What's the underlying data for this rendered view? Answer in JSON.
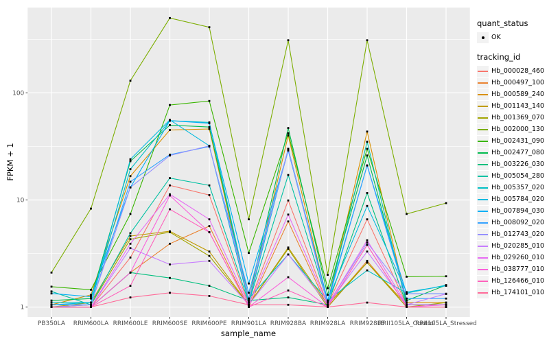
{
  "figure": {
    "background": "#FFFFFF",
    "panel_background": "#EBEBEB",
    "gridline_color": "#FFFFFF",
    "tick_text_color": "#4D4D4D",
    "tick_mark_color": "#333333",
    "point_color": "#000000",
    "legend_key_fill": "#F2F2F2"
  },
  "legend": {
    "quant_status_title": "quant_status",
    "ok_label": "OK",
    "tracking_id_title": "tracking_id"
  },
  "chart_data": {
    "type": "line",
    "title": "",
    "xlabel": "sample_name",
    "ylabel": "FPKM + 1",
    "y_scale": "log10",
    "y_ticks": [
      1,
      10,
      100
    ],
    "y_minor_ticks": [
      3.162,
      31.62,
      316.2
    ],
    "ylim": [
      0.81,
      630
    ],
    "grid": "on",
    "legend_position": "right",
    "point_marker": "black-dot",
    "categories": [
      "PB350LA",
      "RRIM600LA",
      "RRIM600LE",
      "RRIM600SE",
      "RRIM600PE",
      "RRIM901LA",
      "RRIM928BA",
      "RRIM928LA",
      "RRIM928LE",
      "RRII105LA_Control",
      "RRII105LA_Stressed"
    ],
    "series": [
      {
        "name": "Hb_000028_460",
        "color": "#F8766D",
        "values": [
          1.0,
          1.0,
          2.9,
          13.7,
          11.1,
          1.05,
          9.9,
          1.05,
          6.6,
          1.05,
          1.05
        ]
      },
      {
        "name": "Hb_000497_100",
        "color": "#EA8331",
        "values": [
          1.0,
          1.0,
          2.1,
          3.9,
          5.7,
          1.0,
          6.3,
          1.0,
          2.7,
          1.0,
          1.0
        ]
      },
      {
        "name": "Hb_000589_240",
        "color": "#D89000",
        "values": [
          1.05,
          1.3,
          16.7,
          45,
          46,
          1.1,
          40,
          1.1,
          43.5,
          1.1,
          1.1
        ]
      },
      {
        "name": "Hb_001143_140",
        "color": "#C09B00",
        "values": [
          1.0,
          1.1,
          4.6,
          5.1,
          3.3,
          1.05,
          3.6,
          1.05,
          2.6,
          1.05,
          1.05
        ]
      },
      {
        "name": "Hb_001369_070",
        "color": "#A3A500",
        "values": [
          1.0,
          1.05,
          4.3,
          5.0,
          3.0,
          1.05,
          3.5,
          1.0,
          2.6,
          1.0,
          1.1
        ]
      },
      {
        "name": "Hb_002000_130",
        "color": "#7CAE00",
        "values": [
          2.1,
          8.3,
          130,
          500,
          410,
          6.6,
          310,
          2.0,
          310,
          7.4,
          9.35
        ]
      },
      {
        "name": "Hb_002431_090",
        "color": "#39B600",
        "values": [
          1.55,
          1.45,
          7.4,
          77,
          84,
          3.2,
          42,
          1.5,
          30,
          1.92,
          1.94
        ]
      },
      {
        "name": "Hb_002477_080",
        "color": "#00BB4E",
        "values": [
          1.15,
          1.2,
          23,
          50,
          48,
          1.2,
          47,
          1.3,
          26,
          1.15,
          1.6
        ]
      },
      {
        "name": "Hb_003226_030",
        "color": "#00BF7D",
        "values": [
          1.0,
          1.0,
          2.1,
          1.87,
          1.58,
          1.15,
          1.23,
          1.05,
          11.6,
          1.05,
          1.05
        ]
      },
      {
        "name": "Hb_005054_280",
        "color": "#00C1A3",
        "values": [
          1.4,
          1.05,
          4.9,
          16,
          13.7,
          1.1,
          17.1,
          1.1,
          35,
          1.05,
          1.05
        ]
      },
      {
        "name": "Hb_005357_020",
        "color": "#00BFC4",
        "values": [
          1.1,
          1.1,
          19.4,
          55,
          53,
          1.2,
          3.1,
          1.15,
          2.2,
          1.35,
          1.6
        ]
      },
      {
        "name": "Hb_005784_020",
        "color": "#00BAE0",
        "values": [
          1.05,
          1.1,
          24,
          56,
          32,
          1.1,
          30,
          1.15,
          8.8,
          1.38,
          1.58
        ]
      },
      {
        "name": "Hb_007894_030",
        "color": "#00B0F6",
        "values": [
          1.34,
          1.25,
          13.1,
          55,
          52,
          1.66,
          29,
          1.15,
          21,
          1.33,
          1.33
        ]
      },
      {
        "name": "Hb_008092_020",
        "color": "#35A2FF",
        "values": [
          1.05,
          1.05,
          14.8,
          26.5,
          31.5,
          1.36,
          29,
          1.1,
          21,
          1.2,
          1.2
        ]
      },
      {
        "name": "Hb_012743_020",
        "color": "#9590FF",
        "values": [
          1.0,
          1.05,
          13.1,
          26,
          32,
          1.2,
          30,
          1.05,
          4.0,
          1.33,
          1.33
        ]
      },
      {
        "name": "Hb_020285_010",
        "color": "#C77CFF",
        "values": [
          1.0,
          1.0,
          3.55,
          2.5,
          2.7,
          1.05,
          3.1,
          1.05,
          3.3,
          1.05,
          1.33
        ]
      },
      {
        "name": "Hb_029260_010",
        "color": "#E76BF3",
        "values": [
          1.0,
          1.0,
          3.9,
          11.3,
          6.6,
          1.05,
          7.3,
          1.05,
          4.2,
          1.05,
          1.05
        ]
      },
      {
        "name": "Hb_038777_010",
        "color": "#FA62DB",
        "values": [
          1.0,
          1.0,
          2.1,
          11.0,
          5.0,
          1.0,
          1.9,
          1.0,
          3.8,
          1.0,
          1.05
        ]
      },
      {
        "name": "Hb_126466_010",
        "color": "#FF62BC",
        "values": [
          1.0,
          1.0,
          1.58,
          8.2,
          5.0,
          1.0,
          1.43,
          1.0,
          3.8,
          1.0,
          1.0
        ]
      },
      {
        "name": "Hb_174101_010",
        "color": "#FF6A98",
        "values": [
          1.0,
          1.0,
          1.23,
          1.36,
          1.27,
          1.05,
          1.05,
          1.0,
          1.1,
          1.0,
          1.0
        ]
      }
    ]
  }
}
